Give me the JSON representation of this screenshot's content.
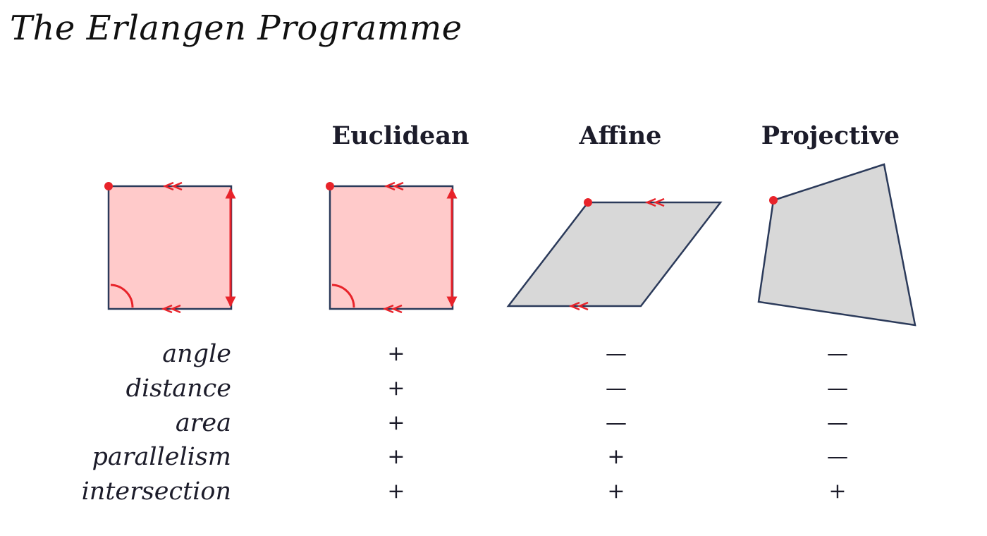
{
  "title": "The Erlangen Programme",
  "columns": [
    "Euclidean",
    "Affine",
    "Projective"
  ],
  "properties": [
    {
      "name": "angle",
      "marks": [
        "+",
        "—",
        "—"
      ]
    },
    {
      "name": "distance",
      "marks": [
        "+",
        "—",
        "—"
      ]
    },
    {
      "name": "area",
      "marks": [
        "+",
        "—",
        "—"
      ]
    },
    {
      "name": "parallelism",
      "marks": [
        "+",
        "+",
        "—"
      ]
    },
    {
      "name": "intersection",
      "marks": [
        "+",
        "+",
        "+"
      ]
    }
  ],
  "colors": {
    "square_fill": "#ffcaca",
    "quad_fill": "#d8d8d8",
    "outline": "#2b3a5a",
    "marker": "#e8232a",
    "text": "#1c1c2a"
  }
}
